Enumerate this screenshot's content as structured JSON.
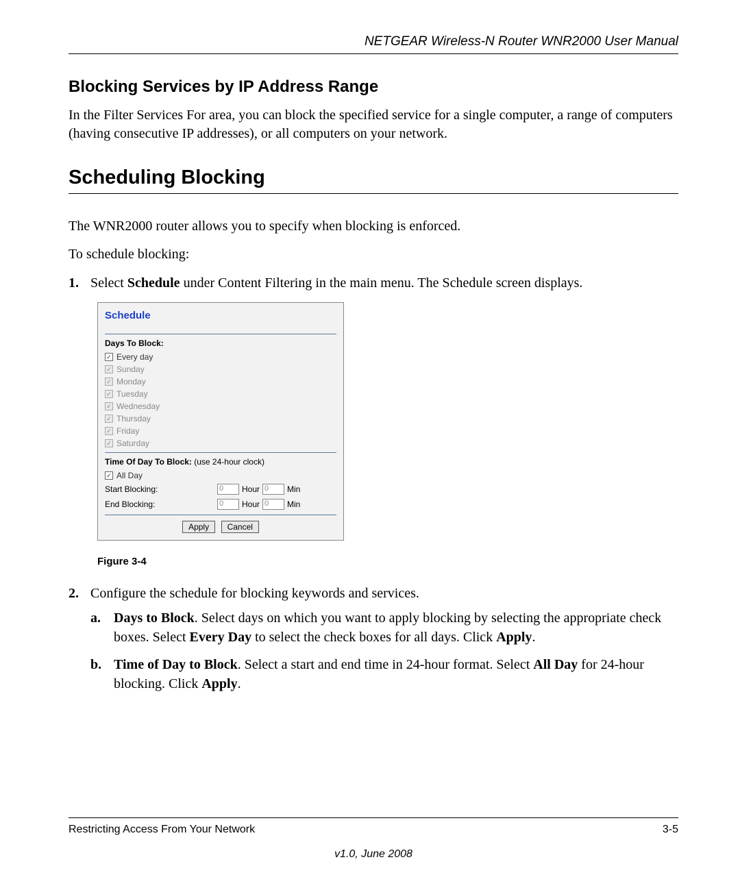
{
  "header": {
    "manual_title": "NETGEAR Wireless-N Router WNR2000 User Manual"
  },
  "section1": {
    "heading": "Blocking Services by IP Address Range",
    "paragraph": "In the Filter Services For area, you can block the specified service for a single computer, a range of computers (having consecutive IP addresses), or all computers on your network."
  },
  "section2": {
    "heading": "Scheduling Blocking",
    "para1": "The WNR2000 router allows you to specify when blocking is enforced.",
    "para2": "To schedule blocking:",
    "step1_num": "1.",
    "step1_a": "Select ",
    "step1_b_bold": "Schedule",
    "step1_c": " under Content Filtering in the main menu. The Schedule screen displays.",
    "step2_num": "2.",
    "step2_text": "Configure the schedule for blocking keywords and services.",
    "step2a_num": "a.",
    "step2a_b1": "Days to Block",
    "step2a_t1": ". Select days on which you want to apply blocking by selecting the appropriate check boxes. Select ",
    "step2a_b2": "Every Day",
    "step2a_t2": " to select the check boxes for all days. Click ",
    "step2a_b3": "Apply",
    "step2a_t3": ".",
    "step2b_num": "b.",
    "step2b_b1": "Time of Day to Block",
    "step2b_t1": ". Select a start and end time in 24-hour format. Select ",
    "step2b_b2": "All Day",
    "step2b_t2": " for 24-hour blocking. Click ",
    "step2b_b3": "Apply",
    "step2b_t3": "."
  },
  "screenshot": {
    "title": "Schedule",
    "days_label": "Days To Block:",
    "days": [
      "Every day",
      "Sunday",
      "Monday",
      "Tuesday",
      "Wednesday",
      "Thursday",
      "Friday",
      "Saturday"
    ],
    "time_label": "Time Of Day To Block:",
    "time_note": " (use 24-hour clock)",
    "allday": "All Day",
    "start_label": "Start Blocking:",
    "end_label": "End Blocking:",
    "hour": "Hour",
    "min": "Min",
    "val": "0",
    "apply": "Apply",
    "cancel": "Cancel"
  },
  "figure_caption": "Figure 3-4",
  "footer": {
    "left": "Restricting Access From Your Network",
    "right": "3-5",
    "version": "v1.0, June 2008"
  },
  "colors": {
    "title_blue": "#1a3fc9",
    "rule": "#000000",
    "ss_border": "#888888",
    "ss_bg": "#f2f2f2",
    "ss_hr": "#5a7a9a"
  }
}
